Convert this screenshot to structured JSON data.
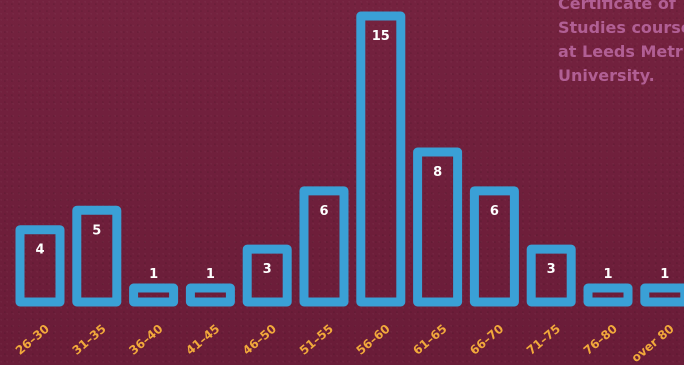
{
  "annotation": {
    "lines": [
      "Certificate of",
      "Studies course",
      "at Leeds Metr",
      "University."
    ]
  },
  "colors": {
    "background": "#6e1f3c",
    "bar_stroke": "#3aa0d6",
    "value_label": "#ffffff",
    "tick_label": "#f2a93b",
    "annotation": "#b8669e"
  },
  "chart_data": {
    "type": "bar",
    "title": "",
    "xlabel": "",
    "ylabel": "",
    "categories": [
      "26–30",
      "31–35",
      "36–40",
      "41–45",
      "46–50",
      "51–55",
      "56–60",
      "61–65",
      "66–70",
      "71–75",
      "76–80",
      "over 80"
    ],
    "values": [
      4,
      5,
      1,
      1,
      3,
      6,
      15,
      8,
      6,
      3,
      1,
      1
    ],
    "ylim": [
      0,
      15
    ],
    "grid": false,
    "legend": "none",
    "style": "outlined hand-drawn bars with value labels inside"
  }
}
